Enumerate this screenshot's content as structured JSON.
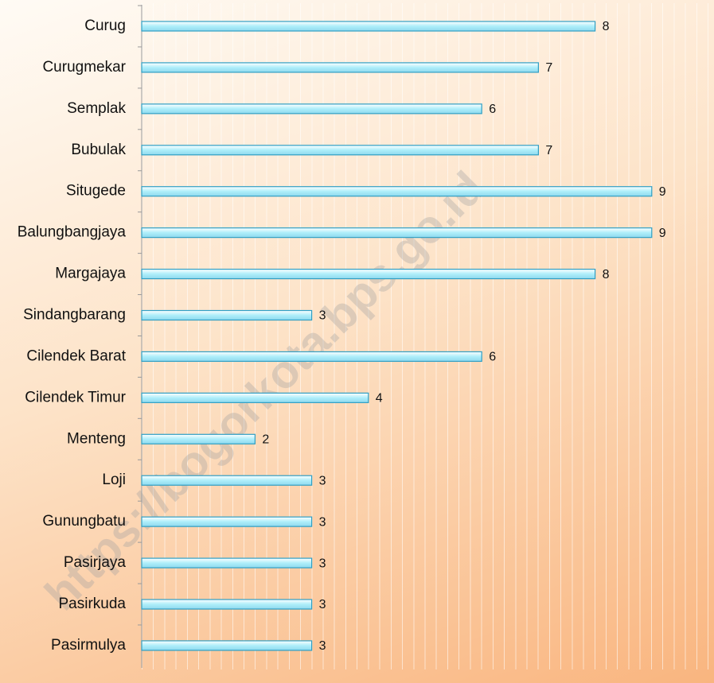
{
  "chart_data": {
    "type": "bar",
    "orientation": "horizontal",
    "categories": [
      "Curug",
      "Curugmekar",
      "Semplak",
      "Bubulak",
      "Situgede",
      "Balungbangjaya",
      "Margajaya",
      "Sindangbarang",
      "Cilendek Barat",
      "Cilendek Timur",
      "Menteng",
      "Loji",
      "Gunungbatu",
      "Pasirjaya",
      "Pasirkuda",
      "Pasirmulya"
    ],
    "values": [
      8,
      7,
      6,
      7,
      9,
      9,
      8,
      3,
      6,
      4,
      2,
      3,
      3,
      3,
      3,
      3
    ],
    "color": "#aeeefa",
    "xlim": [
      0,
      10
    ],
    "watermark": "https://bogorkota.bps.go.id"
  }
}
